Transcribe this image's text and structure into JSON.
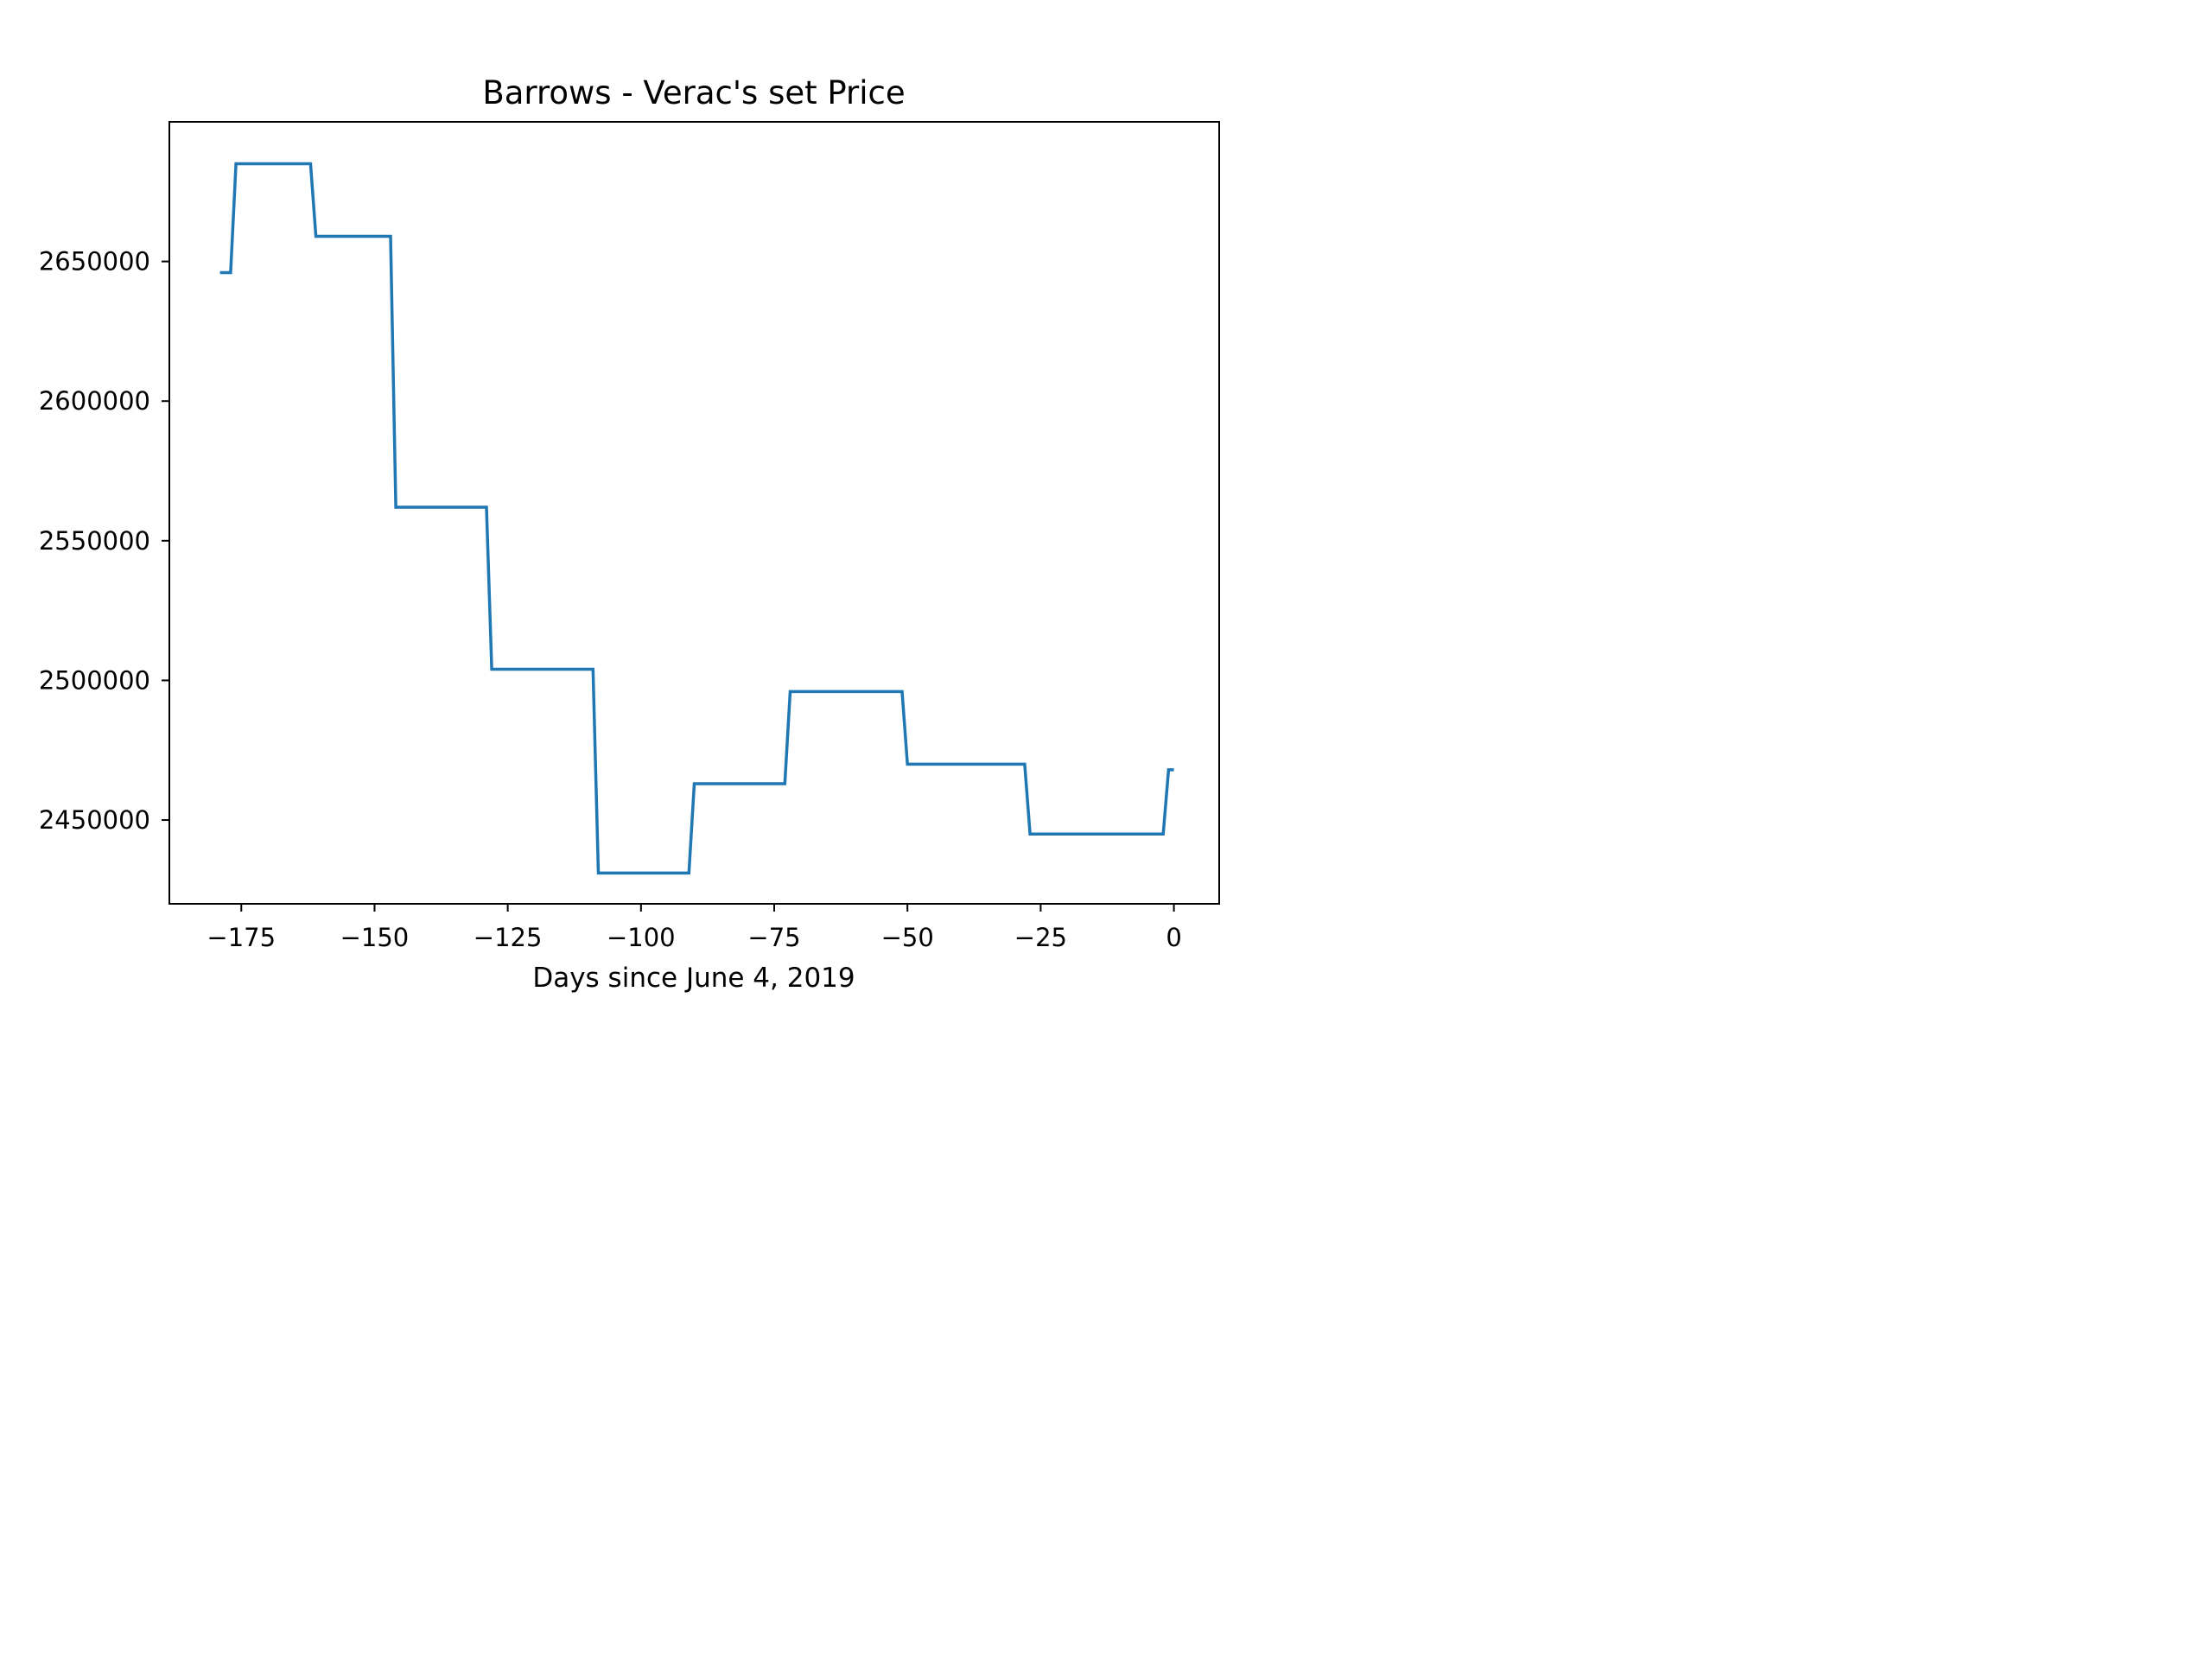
{
  "chart_data": {
    "type": "line",
    "title": "Barrows - Verac's set Price",
    "xlabel": "Days since June 4, 2019",
    "ylabel": "",
    "xlim": [
      -188.5,
      8.5
    ],
    "ylim": [
      2420000,
      2700000
    ],
    "xticks": [
      -175,
      -150,
      -125,
      -100,
      -75,
      -50,
      -25,
      0
    ],
    "xtick_labels": [
      "−175",
      "−150",
      "−125",
      "−100",
      "−75",
      "−50",
      "−25",
      "0"
    ],
    "yticks": [
      2450000,
      2500000,
      2550000,
      2600000,
      2650000
    ],
    "ytick_labels": [
      "2450000",
      "2500000",
      "2550000",
      "2600000",
      "2650000"
    ],
    "grid": false,
    "series": [
      {
        "color": "#1f77b4",
        "x": [
          -179,
          -177,
          -176,
          -162,
          -161,
          -147,
          -146,
          -129,
          -128,
          -109,
          -108,
          -91,
          -90,
          -73,
          -72,
          -51,
          -50,
          -28,
          -27,
          -2,
          -1,
          0
        ],
        "y": [
          2646000,
          2646000,
          2685000,
          2685000,
          2659000,
          2659000,
          2562000,
          2562000,
          2504000,
          2504000,
          2431000,
          2431000,
          2463000,
          2463000,
          2496000,
          2496000,
          2470000,
          2470000,
          2445000,
          2445000,
          2468000,
          2468000
        ]
      }
    ]
  }
}
